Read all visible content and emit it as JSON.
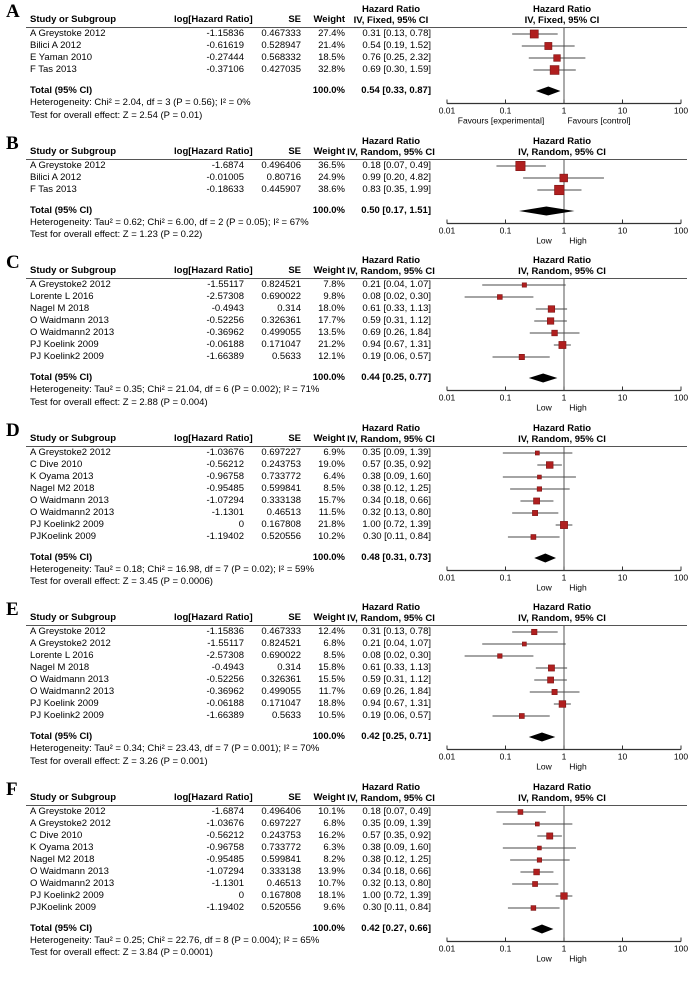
{
  "figure_title": "Forest plots of hazard ratios (meta-analysis panels A-F)",
  "chart_data": {
    "type": "scatter",
    "subtype": "forest-plot",
    "xscale": "log",
    "xlim": [
      0.01,
      100
    ],
    "xticks": [
      "0.01",
      "0.1",
      "1",
      "10",
      "100"
    ],
    "marker_color": "#b01f1f",
    "diamond_color": "#000000",
    "panels": [
      {
        "label": "A",
        "columns": {
          "study": "Study or Subgroup",
          "loghr": "log[Hazard Ratio]",
          "se": "SE",
          "weight": "Weight",
          "effect1": "Hazard Ratio",
          "effect2": "IV, Fixed, 95% CI"
        },
        "studies": [
          {
            "name": "A Greystoke 2012",
            "loghr": "-1.15836",
            "se": "0.467333",
            "weight": "27.4%",
            "estimate": "0.31 [0.13, 0.78]",
            "hr": 0.31,
            "lo": 0.13,
            "hi": 0.78,
            "w": 27.4
          },
          {
            "name": "Bilici A 2012",
            "loghr": "-0.61619",
            "se": "0.528947",
            "weight": "21.4%",
            "estimate": "0.54 [0.19, 1.52]",
            "hr": 0.54,
            "lo": 0.19,
            "hi": 1.52,
            "w": 21.4
          },
          {
            "name": "E Yaman 2010",
            "loghr": "-0.27444",
            "se": "0.568332",
            "weight": "18.5%",
            "estimate": "0.76 [0.25, 2.32]",
            "hr": 0.76,
            "lo": 0.25,
            "hi": 2.32,
            "w": 18.5
          },
          {
            "name": "F Tas 2013",
            "loghr": "-0.37106",
            "se": "0.427035",
            "weight": "32.8%",
            "estimate": "0.69 [0.30, 1.59]",
            "hr": 0.69,
            "lo": 0.3,
            "hi": 1.59,
            "w": 32.8
          }
        ],
        "total": {
          "label": "Total (95% CI)",
          "weight": "100.0%",
          "estimate": "0.54 [0.33, 0.87]",
          "hr": 0.54,
          "lo": 0.33,
          "hi": 0.87
        },
        "heterogeneity": "Heterogeneity: Chi² = 2.04, df = 3 (P = 0.56); I² = 0%",
        "test": "Test for overall effect: Z = 2.54 (P = 0.01)",
        "axis_labels": {
          "left": "Favours [experimental]",
          "right": "Favours [control]"
        }
      },
      {
        "label": "B",
        "columns": {
          "study": "Study or Subgroup",
          "loghr": "log[Hazard Ratio]",
          "se": "SE",
          "weight": "Weight",
          "effect1": "Hazard Ratio",
          "effect2": "IV, Random, 95% CI"
        },
        "studies": [
          {
            "name": "A Greystoke 2012",
            "loghr": "-1.6874",
            "se": "0.496406",
            "weight": "36.5%",
            "estimate": "0.18 [0.07, 0.49]",
            "hr": 0.18,
            "lo": 0.07,
            "hi": 0.49,
            "w": 36.5
          },
          {
            "name": "Bilici A 2012",
            "loghr": "-0.01005",
            "se": "0.80716",
            "weight": "24.9%",
            "estimate": "0.99 [0.20, 4.82]",
            "hr": 0.99,
            "lo": 0.2,
            "hi": 4.82,
            "w": 24.9
          },
          {
            "name": "F Tas 2013",
            "loghr": "-0.18633",
            "se": "0.445907",
            "weight": "38.6%",
            "estimate": "0.83 [0.35, 1.99]",
            "hr": 0.83,
            "lo": 0.35,
            "hi": 1.99,
            "w": 38.6
          }
        ],
        "total": {
          "label": "Total (95% CI)",
          "weight": "100.0%",
          "estimate": "0.50 [0.17, 1.51]",
          "hr": 0.5,
          "lo": 0.17,
          "hi": 1.51
        },
        "heterogeneity": "Heterogeneity: Tau² = 0.62; Chi² = 6.00, df = 2 (P = 0.05); I² = 67%",
        "test": "Test for overall effect: Z = 1.23 (P = 0.22)",
        "axis_labels": {
          "left": "Low",
          "right": "High"
        }
      },
      {
        "label": "C",
        "columns": {
          "study": "Study or Subgroup",
          "loghr": "log[Hazard Ratio]",
          "se": "SE",
          "weight": "Weight",
          "effect1": "Hazard Ratio",
          "effect2": "IV, Random, 95% CI"
        },
        "studies": [
          {
            "name": "A Greystoke2 2012",
            "loghr": "-1.55117",
            "se": "0.824521",
            "weight": "7.8%",
            "estimate": "0.21 [0.04, 1.07]",
            "hr": 0.21,
            "lo": 0.04,
            "hi": 1.07,
            "w": 7.8
          },
          {
            "name": "Lorente L 2016",
            "loghr": "-2.57308",
            "se": "0.690022",
            "weight": "9.8%",
            "estimate": "0.08 [0.02, 0.30]",
            "hr": 0.08,
            "lo": 0.02,
            "hi": 0.3,
            "w": 9.8
          },
          {
            "name": "Nagel M 2018",
            "loghr": "-0.4943",
            "se": "0.314",
            "weight": "18.0%",
            "estimate": "0.61 [0.33, 1.13]",
            "hr": 0.61,
            "lo": 0.33,
            "hi": 1.13,
            "w": 18.0
          },
          {
            "name": "O Waidmann 2013",
            "loghr": "-0.52256",
            "se": "0.326361",
            "weight": "17.7%",
            "estimate": "0.59 [0.31, 1.12]",
            "hr": 0.59,
            "lo": 0.31,
            "hi": 1.12,
            "w": 17.7
          },
          {
            "name": "O Waidmann2 2013",
            "loghr": "-0.36962",
            "se": "0.499055",
            "weight": "13.5%",
            "estimate": "0.69 [0.26, 1.84]",
            "hr": 0.69,
            "lo": 0.26,
            "hi": 1.84,
            "w": 13.5
          },
          {
            "name": "PJ Koelink 2009",
            "loghr": "-0.06188",
            "se": "0.171047",
            "weight": "21.2%",
            "estimate": "0.94 [0.67, 1.31]",
            "hr": 0.94,
            "lo": 0.67,
            "hi": 1.31,
            "w": 21.2
          },
          {
            "name": "PJ Koelink2 2009",
            "loghr": "-1.66389",
            "se": "0.5633",
            "weight": "12.1%",
            "estimate": "0.19 [0.06, 0.57]",
            "hr": 0.19,
            "lo": 0.06,
            "hi": 0.57,
            "w": 12.1
          }
        ],
        "total": {
          "label": "Total (95% CI)",
          "weight": "100.0%",
          "estimate": "0.44 [0.25, 0.77]",
          "hr": 0.44,
          "lo": 0.25,
          "hi": 0.77
        },
        "heterogeneity": "Heterogeneity: Tau² = 0.35; Chi² = 21.04, df = 6 (P = 0.002); I² = 71%",
        "test": "Test for overall effect: Z = 2.88 (P = 0.004)",
        "axis_labels": {
          "left": "Low",
          "right": "High"
        }
      },
      {
        "label": "D",
        "columns": {
          "study": "Study or Subgroup",
          "loghr": "log[Hazard Ratio]",
          "se": "SE",
          "weight": "Weight",
          "effect1": "Hazard Ratio",
          "effect2": "IV, Random, 95% CI"
        },
        "studies": [
          {
            "name": "A Greystoke2 2012",
            "loghr": "-1.03676",
            "se": "0.697227",
            "weight": "6.9%",
            "estimate": "0.35 [0.09, 1.39]",
            "hr": 0.35,
            "lo": 0.09,
            "hi": 1.39,
            "w": 6.9
          },
          {
            "name": "C Dive 2010",
            "loghr": "-0.56212",
            "se": "0.243753",
            "weight": "19.0%",
            "estimate": "0.57 [0.35, 0.92]",
            "hr": 0.57,
            "lo": 0.35,
            "hi": 0.92,
            "w": 19.0
          },
          {
            "name": "K Oyama 2013",
            "loghr": "-0.96758",
            "se": "0.733772",
            "weight": "6.4%",
            "estimate": "0.38 [0.09, 1.60]",
            "hr": 0.38,
            "lo": 0.09,
            "hi": 1.6,
            "w": 6.4
          },
          {
            "name": "Nagel M2 2018",
            "loghr": "-0.95485",
            "se": "0.599841",
            "weight": "8.5%",
            "estimate": "0.38 [0.12, 1.25]",
            "hr": 0.38,
            "lo": 0.12,
            "hi": 1.25,
            "w": 8.5
          },
          {
            "name": "O Waidmann 2013",
            "loghr": "-1.07294",
            "se": "0.333138",
            "weight": "15.7%",
            "estimate": "0.34 [0.18, 0.66]",
            "hr": 0.34,
            "lo": 0.18,
            "hi": 0.66,
            "w": 15.7
          },
          {
            "name": "O Waidmann2 2013",
            "loghr": "-1.1301",
            "se": "0.46513",
            "weight": "11.5%",
            "estimate": "0.32 [0.13, 0.80]",
            "hr": 0.32,
            "lo": 0.13,
            "hi": 0.8,
            "w": 11.5
          },
          {
            "name": "PJ Koelink2 2009",
            "loghr": "0",
            "se": "0.167808",
            "weight": "21.8%",
            "estimate": "1.00 [0.72, 1.39]",
            "hr": 1.0,
            "lo": 0.72,
            "hi": 1.39,
            "w": 21.8
          },
          {
            "name": "PJKoelink 2009",
            "loghr": "-1.19402",
            "se": "0.520556",
            "weight": "10.2%",
            "estimate": "0.30 [0.11, 0.84]",
            "hr": 0.3,
            "lo": 0.11,
            "hi": 0.84,
            "w": 10.2
          }
        ],
        "total": {
          "label": "Total (95% CI)",
          "weight": "100.0%",
          "estimate": "0.48 [0.31, 0.73]",
          "hr": 0.48,
          "lo": 0.31,
          "hi": 0.73
        },
        "heterogeneity": "Heterogeneity: Tau² = 0.18; Chi² = 16.98, df = 7 (P = 0.02); I² = 59%",
        "test": "Test for overall effect: Z = 3.45 (P = 0.0006)",
        "axis_labels": {
          "left": "Low",
          "right": "High"
        }
      },
      {
        "label": "E",
        "columns": {
          "study": "Study or Subgroup",
          "loghr": "log[Hazard Ratio]",
          "se": "SE",
          "weight": "Weight",
          "effect1": "Hazard Ratio",
          "effect2": "IV, Random, 95% CI"
        },
        "studies": [
          {
            "name": "A Greystoke 2012",
            "loghr": "-1.15836",
            "se": "0.467333",
            "weight": "12.4%",
            "estimate": "0.31 [0.13, 0.78]",
            "hr": 0.31,
            "lo": 0.13,
            "hi": 0.78,
            "w": 12.4
          },
          {
            "name": "A Greystoke2 2012",
            "loghr": "-1.55117",
            "se": "0.824521",
            "weight": "6.8%",
            "estimate": "0.21 [0.04, 1.07]",
            "hr": 0.21,
            "lo": 0.04,
            "hi": 1.07,
            "w": 6.8
          },
          {
            "name": "Lorente L 2016",
            "loghr": "-2.57308",
            "se": "0.690022",
            "weight": "8.5%",
            "estimate": "0.08 [0.02, 0.30]",
            "hr": 0.08,
            "lo": 0.02,
            "hi": 0.3,
            "w": 8.5
          },
          {
            "name": "Nagel M 2018",
            "loghr": "-0.4943",
            "se": "0.314",
            "weight": "15.8%",
            "estimate": "0.61 [0.33, 1.13]",
            "hr": 0.61,
            "lo": 0.33,
            "hi": 1.13,
            "w": 15.8
          },
          {
            "name": "O Waidmann 2013",
            "loghr": "-0.52256",
            "se": "0.326361",
            "weight": "15.5%",
            "estimate": "0.59 [0.31, 1.12]",
            "hr": 0.59,
            "lo": 0.31,
            "hi": 1.12,
            "w": 15.5
          },
          {
            "name": "O Waidmann2 2013",
            "loghr": "-0.36962",
            "se": "0.499055",
            "weight": "11.7%",
            "estimate": "0.69 [0.26, 1.84]",
            "hr": 0.69,
            "lo": 0.26,
            "hi": 1.84,
            "w": 11.7
          },
          {
            "name": "PJ Koelink 2009",
            "loghr": "-0.06188",
            "se": "0.171047",
            "weight": "18.8%",
            "estimate": "0.94 [0.67, 1.31]",
            "hr": 0.94,
            "lo": 0.67,
            "hi": 1.31,
            "w": 18.8
          },
          {
            "name": "PJ Koelink2 2009",
            "loghr": "-1.66389",
            "se": "0.5633",
            "weight": "10.5%",
            "estimate": "0.19 [0.06, 0.57]",
            "hr": 0.19,
            "lo": 0.06,
            "hi": 0.57,
            "w": 10.5
          }
        ],
        "total": {
          "label": "Total (95% CI)",
          "weight": "100.0%",
          "estimate": "0.42 [0.25, 0.71]",
          "hr": 0.42,
          "lo": 0.25,
          "hi": 0.71
        },
        "heterogeneity": "Heterogeneity: Tau² = 0.34; Chi² = 23.43, df = 7 (P = 0.001); I² = 70%",
        "test": "Test for overall effect: Z = 3.26 (P = 0.001)",
        "axis_labels": {
          "left": "Low",
          "right": "High"
        }
      },
      {
        "label": "F",
        "columns": {
          "study": "Study or Subgroup",
          "loghr": "log[Hazard Ratio]",
          "se": "SE",
          "weight": "Weight",
          "effect1": "Hazard Ratio",
          "effect2": "IV, Random, 95% CI"
        },
        "studies": [
          {
            "name": "A Greystoke 2012",
            "loghr": "-1.6874",
            "se": "0.496406",
            "weight": "10.1%",
            "estimate": "0.18 [0.07, 0.49]",
            "hr": 0.18,
            "lo": 0.07,
            "hi": 0.49,
            "w": 10.1
          },
          {
            "name": "A Greystoke2 2012",
            "loghr": "-1.03676",
            "se": "0.697227",
            "weight": "6.8%",
            "estimate": "0.35 [0.09, 1.39]",
            "hr": 0.35,
            "lo": 0.09,
            "hi": 1.39,
            "w": 6.8
          },
          {
            "name": "C Dive 2010",
            "loghr": "-0.56212",
            "se": "0.243753",
            "weight": "16.2%",
            "estimate": "0.57 [0.35, 0.92]",
            "hr": 0.57,
            "lo": 0.35,
            "hi": 0.92,
            "w": 16.2
          },
          {
            "name": "K Oyama 2013",
            "loghr": "-0.96758",
            "se": "0.733772",
            "weight": "6.3%",
            "estimate": "0.38 [0.09, 1.60]",
            "hr": 0.38,
            "lo": 0.09,
            "hi": 1.6,
            "w": 6.3
          },
          {
            "name": "Nagel M2 2018",
            "loghr": "-0.95485",
            "se": "0.599841",
            "weight": "8.2%",
            "estimate": "0.38 [0.12, 1.25]",
            "hr": 0.38,
            "lo": 0.12,
            "hi": 1.25,
            "w": 8.2
          },
          {
            "name": "O Waidmann 2013",
            "loghr": "-1.07294",
            "se": "0.333138",
            "weight": "13.9%",
            "estimate": "0.34 [0.18, 0.66]",
            "hr": 0.34,
            "lo": 0.18,
            "hi": 0.66,
            "w": 13.9
          },
          {
            "name": "O Waidmann2 2013",
            "loghr": "-1.1301",
            "se": "0.46513",
            "weight": "10.7%",
            "estimate": "0.32 [0.13, 0.80]",
            "hr": 0.32,
            "lo": 0.13,
            "hi": 0.8,
            "w": 10.7
          },
          {
            "name": "PJ Koelink2 2009",
            "loghr": "0",
            "se": "0.167808",
            "weight": "18.1%",
            "estimate": "1.00 [0.72, 1.39]",
            "hr": 1.0,
            "lo": 0.72,
            "hi": 1.39,
            "w": 18.1
          },
          {
            "name": "PJKoelink 2009",
            "loghr": "-1.19402",
            "se": "0.520556",
            "weight": "9.6%",
            "estimate": "0.30 [0.11, 0.84]",
            "hr": 0.3,
            "lo": 0.11,
            "hi": 0.84,
            "w": 9.6
          }
        ],
        "total": {
          "label": "Total (95% CI)",
          "weight": "100.0%",
          "estimate": "0.42 [0.27, 0.66]",
          "hr": 0.42,
          "lo": 0.27,
          "hi": 0.66
        },
        "heterogeneity": "Heterogeneity: Tau² = 0.25; Chi² = 22.76, df = 8 (P = 0.004); I² = 65%",
        "test": "Test for overall effect: Z = 3.84 (P = 0.0001)",
        "axis_labels": {
          "left": "Low",
          "right": "High"
        }
      }
    ]
  }
}
